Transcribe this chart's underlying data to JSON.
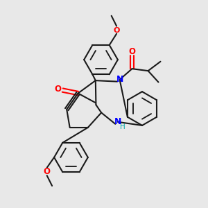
{
  "background_color": "#e8e8e8",
  "bond_color": "#1a1a1a",
  "nitrogen_color": "#0000ff",
  "oxygen_color": "#ff0000",
  "nh_color": "#00aaaa",
  "line_width": 1.5,
  "figsize": [
    3.0,
    3.0
  ],
  "dpi": 100,
  "xlim": [
    0,
    10
  ],
  "ylim": [
    0,
    10
  ]
}
